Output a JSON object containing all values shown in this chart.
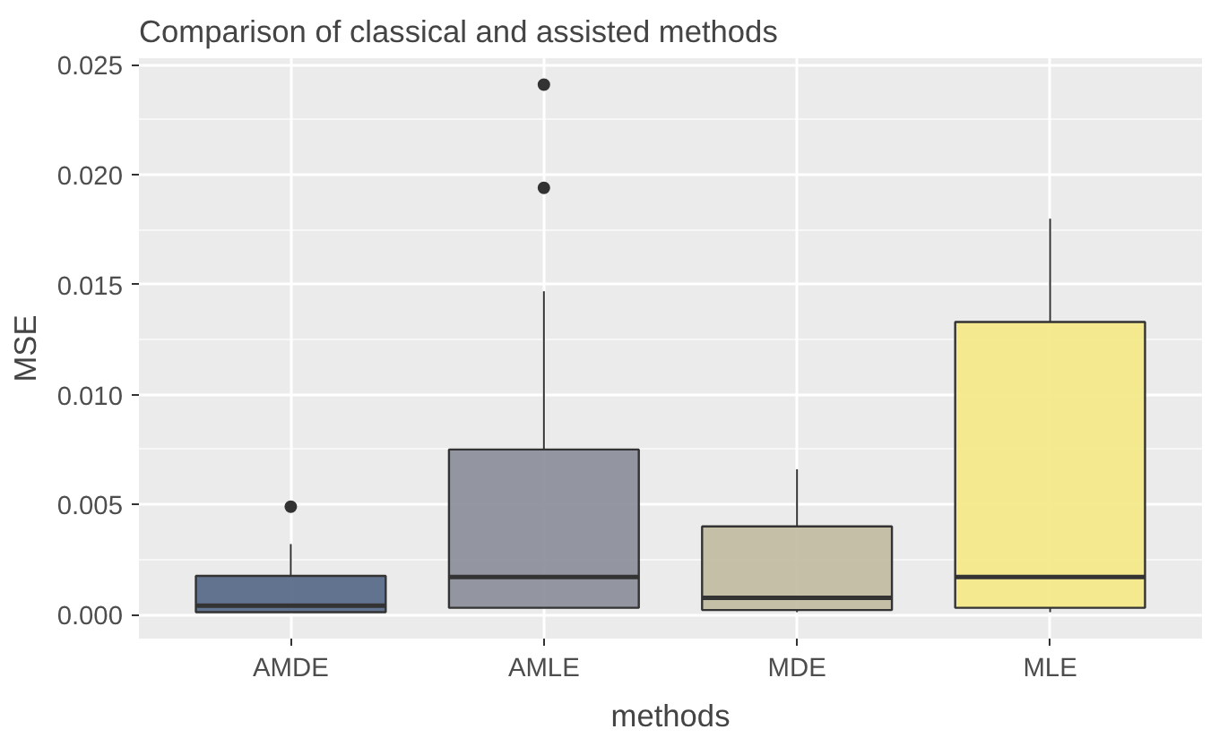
{
  "chart_data": {
    "type": "box",
    "title": "Comparison of classical and assisted methods",
    "xlabel": "methods",
    "ylabel": "MSE",
    "categories": [
      "AMDE",
      "AMLE",
      "MDE",
      "MLE"
    ],
    "colors": [
      "#5b6d8a",
      "#8e909c",
      "#c4bda3",
      "#f6e98a"
    ],
    "boxes": [
      {
        "low": 0.0001,
        "q1": 0.0001,
        "median": 0.0004,
        "q3": 0.00175,
        "high": 0.0032,
        "outliers": [
          0.0049
        ]
      },
      {
        "low": 0.0003,
        "q1": 0.0003,
        "median": 0.0017,
        "q3": 0.0075,
        "high": 0.0147,
        "outliers": [
          0.0194,
          0.0241
        ]
      },
      {
        "low": 0.0001,
        "q1": 0.0002,
        "median": 0.00075,
        "q3": 0.004,
        "high": 0.0066
      },
      {
        "low": 0.0001,
        "q1": 0.0003,
        "median": 0.0017,
        "q3": 0.0133,
        "high": 0.018
      }
    ],
    "ylim": [
      -0.0011,
      0.0253
    ],
    "yticks": [
      {
        "value": 0,
        "label": "0.000"
      },
      {
        "value": 0.005,
        "label": "0.005"
      },
      {
        "value": 0.01,
        "label": "0.010"
      },
      {
        "value": 0.015,
        "label": "0.015"
      },
      {
        "value": 0.02,
        "label": "0.020"
      },
      {
        "value": 0.025,
        "label": "0.025"
      }
    ],
    "grid": true
  }
}
